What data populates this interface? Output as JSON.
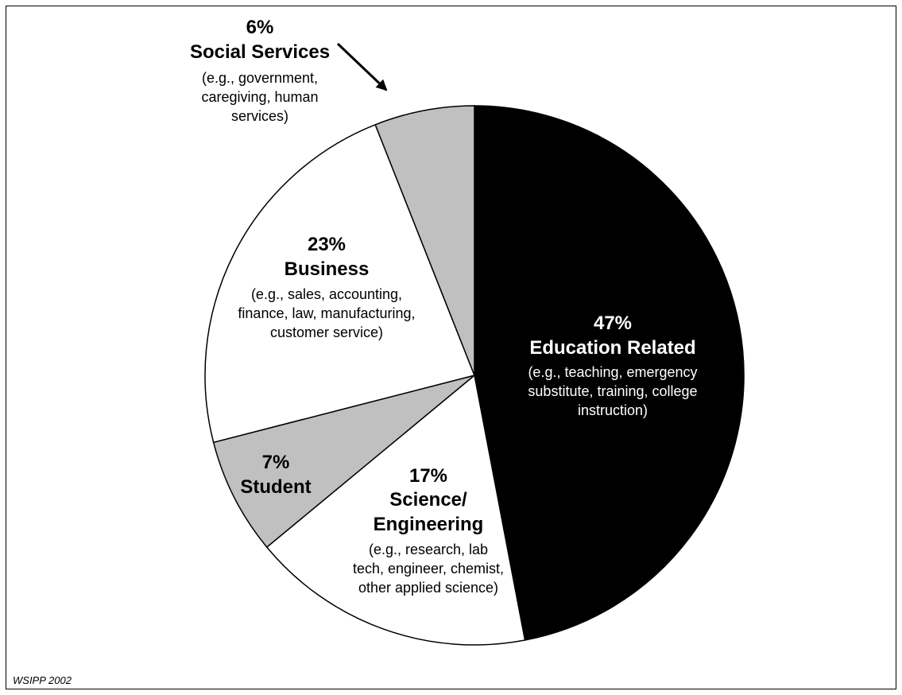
{
  "chart_data": {
    "type": "pie",
    "title": "",
    "start": "12 o'clock",
    "direction": "clockwise",
    "slices": [
      {
        "pct": "47%",
        "value": 47,
        "name": "Education Related",
        "details": [
          "(e.g., teaching, emergency",
          "substitute, training, college",
          "instruction)"
        ],
        "color": "#000000"
      },
      {
        "pct": "17%",
        "value": 17,
        "name": "Science/",
        "name2": "Engineering",
        "details": [
          "(e.g., research, lab",
          "tech, engineer, chemist,",
          "other applied science)"
        ],
        "color": "#ffffff"
      },
      {
        "pct": "7%",
        "value": 7,
        "name": "Student",
        "details": [],
        "color": "#c0c0c0"
      },
      {
        "pct": "23%",
        "value": 23,
        "name": "Business",
        "details": [
          "(e.g., sales, accounting,",
          "finance, law, manufacturing,",
          "customer service)"
        ],
        "color": "#ffffff"
      },
      {
        "pct": "6%",
        "value": 6,
        "name": "Social Services",
        "details": [
          "(e.g., government,",
          "caregiving, human",
          "services)"
        ],
        "color": "#c0c0c0"
      }
    ]
  },
  "source": "WSIPP 2002"
}
